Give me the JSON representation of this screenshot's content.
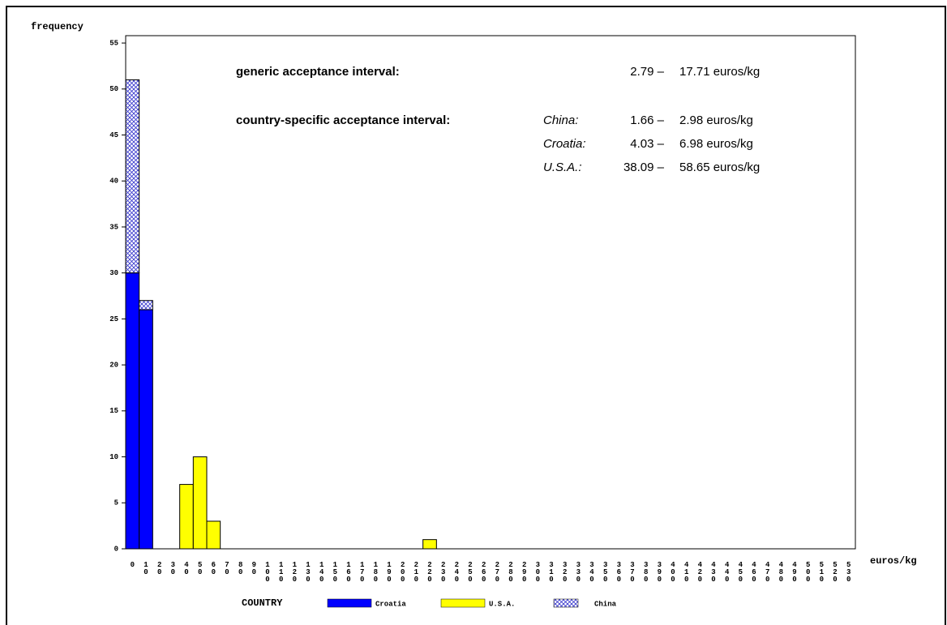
{
  "chart_data": {
    "type": "bar",
    "stacked": true,
    "y_label": "frequency",
    "x_label": "euros/kg",
    "legend_title": "COUNTRY",
    "categories": [
      "0",
      "10",
      "20",
      "30",
      "40",
      "50",
      "60",
      "70",
      "80",
      "90",
      "100",
      "110",
      "120",
      "130",
      "140",
      "150",
      "160",
      "170",
      "180",
      "190",
      "200",
      "210",
      "220",
      "230",
      "240",
      "250",
      "260",
      "270",
      "280",
      "290",
      "300",
      "310",
      "320",
      "330",
      "340",
      "350",
      "360",
      "370",
      "380",
      "390",
      "400",
      "410",
      "420",
      "430",
      "440",
      "450",
      "460",
      "470",
      "480",
      "490",
      "500",
      "510",
      "520",
      "530"
    ],
    "series": [
      {
        "name": "Croatia",
        "color": "#0000ff",
        "pattern": "solid",
        "values": [
          30,
          26,
          0,
          0,
          0,
          0,
          0,
          0,
          0,
          0,
          0,
          0,
          0,
          0,
          0,
          0,
          0,
          0,
          0,
          0,
          0,
          0,
          0,
          0,
          0,
          0,
          0,
          0,
          0,
          0,
          0,
          0,
          0,
          0,
          0,
          0,
          0,
          0,
          0,
          0,
          0,
          0,
          0,
          0,
          0,
          0,
          0,
          0,
          0,
          0,
          0,
          0,
          0,
          0
        ]
      },
      {
        "name": "U.S.A.",
        "color": "#ffff00",
        "pattern": "solid",
        "values": [
          0,
          0,
          0,
          0,
          7,
          10,
          3,
          0,
          0,
          0,
          0,
          0,
          0,
          0,
          0,
          0,
          0,
          0,
          0,
          0,
          0,
          0,
          1,
          0,
          0,
          0,
          0,
          0,
          0,
          0,
          0,
          0,
          0,
          0,
          0,
          0,
          0,
          0,
          0,
          0,
          0,
          0,
          0,
          0,
          0,
          0,
          0,
          0,
          0,
          0,
          0,
          0,
          0,
          0
        ]
      },
      {
        "name": "China",
        "color": "#3333cc",
        "pattern": "crosshatch",
        "values": [
          21,
          1,
          0,
          0,
          0,
          0,
          0,
          0,
          0,
          0,
          0,
          0,
          0,
          0,
          0,
          0,
          0,
          0,
          0,
          0,
          0,
          0,
          0,
          0,
          0,
          0,
          0,
          0,
          0,
          0,
          0,
          0,
          0,
          0,
          0,
          0,
          0,
          0,
          0,
          0,
          0,
          0,
          0,
          0,
          0,
          0,
          0,
          0,
          0,
          0,
          0,
          0,
          0,
          0
        ]
      }
    ],
    "ylim": [
      0,
      55.8
    ],
    "yticks": [
      0,
      5,
      10,
      15,
      20,
      25,
      30,
      35,
      40,
      45,
      50,
      55
    ],
    "annotations": {
      "generic": {
        "label": "generic acceptance interval:",
        "low": "2.79 –",
        "high": "17.71 euros/kg"
      },
      "specific": {
        "label": "country-specific acceptance interval:",
        "rows": [
          {
            "country": "China:",
            "low": "1.66 –",
            "high": "2.98 euros/kg"
          },
          {
            "country": "Croatia:",
            "low": "4.03 –",
            "high": "6.98 euros/kg"
          },
          {
            "country": "U.S.A.:",
            "low": "38.09 –",
            "high": "58.65 euros/kg"
          }
        ]
      }
    }
  }
}
